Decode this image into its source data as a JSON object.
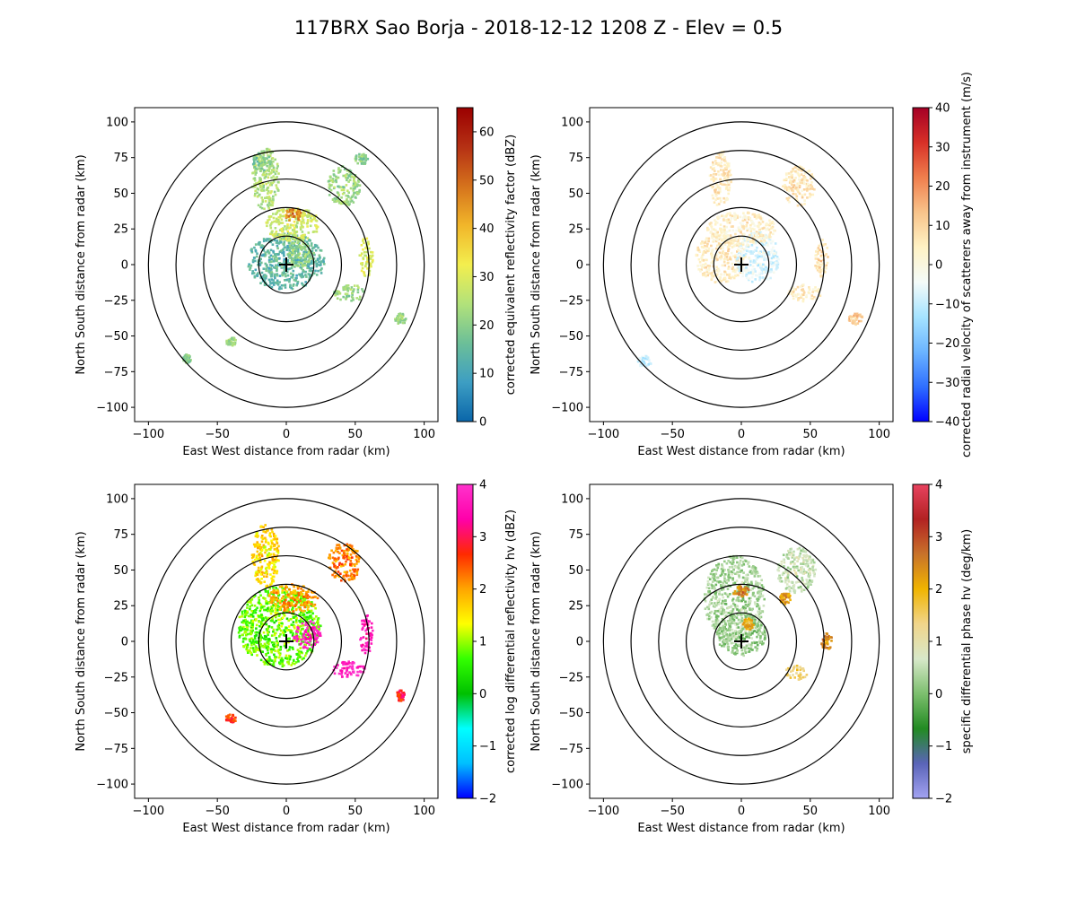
{
  "figure": {
    "title": "117BRX Sao Borja - 2018-12-12 1208 Z -  Elev = 0.5"
  },
  "chart_data": [
    {
      "type": "heatmap",
      "panel": "top-left",
      "xlabel": "East West distance from radar (km)",
      "ylabel": "North South distance from radar (km)",
      "xlim": [
        -110,
        110
      ],
      "ylim": [
        -110,
        110
      ],
      "xticks": [
        -100,
        -50,
        0,
        50,
        100
      ],
      "yticks": [
        -100,
        -75,
        -50,
        -25,
        0,
        25,
        50,
        75,
        100
      ],
      "range_rings_km": [
        20,
        40,
        60,
        80,
        100
      ],
      "colorbar": {
        "label": "corrected equivalent reflectivity factor (dBZ)",
        "min": 0,
        "max": 65,
        "ticks": [
          0,
          10,
          20,
          30,
          40,
          50,
          60
        ],
        "colors": [
          "#0a66aa",
          "#3d9ec3",
          "#6cbf98",
          "#b2e27a",
          "#f3ee4e",
          "#f1b62a",
          "#d5721c",
          "#b53014",
          "#9b0000"
        ]
      },
      "echo_regions": [
        {
          "x": 0,
          "y": 2,
          "rx": 28,
          "ry": 20,
          "value": 14
        },
        {
          "x": 5,
          "y": 28,
          "rx": 20,
          "ry": 12,
          "value": 28
        },
        {
          "x": 5,
          "y": 35,
          "rx": 6,
          "ry": 5,
          "value": 46
        },
        {
          "x": 10,
          "y": 8,
          "rx": 10,
          "ry": 10,
          "value": 22
        },
        {
          "x": -15,
          "y": 60,
          "rx": 10,
          "ry": 22,
          "value": 24
        },
        {
          "x": -18,
          "y": 72,
          "rx": 7,
          "ry": 7,
          "value": 18
        },
        {
          "x": 42,
          "y": 55,
          "rx": 12,
          "ry": 14,
          "value": 22
        },
        {
          "x": 55,
          "y": 74,
          "rx": 5,
          "ry": 4,
          "value": 20
        },
        {
          "x": 58,
          "y": 5,
          "rx": 5,
          "ry": 14,
          "value": 30
        },
        {
          "x": 46,
          "y": -20,
          "rx": 12,
          "ry": 6,
          "value": 22
        },
        {
          "x": 83,
          "y": -38,
          "rx": 4,
          "ry": 4,
          "value": 22
        },
        {
          "x": -40,
          "y": -54,
          "rx": 4,
          "ry": 3,
          "value": 22
        },
        {
          "x": -72,
          "y": -66,
          "rx": 3,
          "ry": 3,
          "value": 20
        }
      ]
    },
    {
      "type": "heatmap",
      "panel": "top-right",
      "xlabel": "East West distance from radar (km)",
      "ylabel": "North South distance from radar (km)",
      "xlim": [
        -110,
        110
      ],
      "ylim": [
        -110,
        110
      ],
      "xticks": [
        -100,
        -50,
        0,
        50,
        100
      ],
      "yticks": [
        -100,
        -75,
        -50,
        -25,
        0,
        25,
        50,
        75,
        100
      ],
      "range_rings_km": [
        20,
        40,
        60,
        80,
        100
      ],
      "colorbar": {
        "label": "corrected radial velocity of scatterers away from instrument (m/s)",
        "min": -40,
        "max": 40,
        "ticks": [
          -40,
          -30,
          -20,
          -10,
          0,
          10,
          20,
          30,
          40
        ],
        "colors": [
          "#0000ff",
          "#2f6fff",
          "#6bb4ff",
          "#a5e3ff",
          "#f4fbf9",
          "#fff2c4",
          "#f8c38a",
          "#f07e4d",
          "#d73027",
          "#a50026"
        ]
      },
      "echo_regions": [
        {
          "x": -15,
          "y": 5,
          "rx": 18,
          "ry": 18,
          "value": 5
        },
        {
          "x": 12,
          "y": 5,
          "rx": 16,
          "ry": 18,
          "value": -7
        },
        {
          "x": 0,
          "y": 25,
          "rx": 25,
          "ry": 12,
          "value": 4
        },
        {
          "x": -15,
          "y": 60,
          "rx": 8,
          "ry": 20,
          "value": 6
        },
        {
          "x": 42,
          "y": 55,
          "rx": 12,
          "ry": 14,
          "value": 6
        },
        {
          "x": 58,
          "y": 5,
          "rx": 5,
          "ry": 14,
          "value": 8
        },
        {
          "x": 46,
          "y": -20,
          "rx": 12,
          "ry": 6,
          "value": 5
        },
        {
          "x": 83,
          "y": -38,
          "rx": 5,
          "ry": 4,
          "value": 12
        },
        {
          "x": -70,
          "y": -68,
          "rx": 5,
          "ry": 4,
          "value": -8
        }
      ]
    },
    {
      "type": "heatmap",
      "panel": "bottom-left",
      "xlabel": "East West distance from radar (km)",
      "ylabel": "North South distance from radar (km)",
      "xlim": [
        -110,
        110
      ],
      "ylim": [
        -110,
        110
      ],
      "xticks": [
        -100,
        -50,
        0,
        50,
        100
      ],
      "yticks": [
        -100,
        -75,
        -50,
        -25,
        0,
        25,
        50,
        75,
        100
      ],
      "range_rings_km": [
        20,
        40,
        60,
        80,
        100
      ],
      "colorbar": {
        "label": "corrected log differential reflectivity hv (dBZ)",
        "min": -2,
        "max": 4,
        "ticks": [
          -2,
          -1,
          0,
          1,
          2,
          3,
          4
        ],
        "colors": [
          "#0000ff",
          "#00bfff",
          "#00ffff",
          "#00c000",
          "#33ff00",
          "#ffff00",
          "#ffa500",
          "#ff2a00",
          "#ff00aa",
          "#ff33cc"
        ]
      },
      "echo_regions": [
        {
          "x": -5,
          "y": 10,
          "rx": 30,
          "ry": 28,
          "value": 0.8
        },
        {
          "x": -15,
          "y": 60,
          "rx": 10,
          "ry": 22,
          "value": 1.6
        },
        {
          "x": 15,
          "y": 5,
          "rx": 10,
          "ry": 10,
          "value": 3.8
        },
        {
          "x": 5,
          "y": 30,
          "rx": 18,
          "ry": 10,
          "value": 2.0
        },
        {
          "x": 42,
          "y": 55,
          "rx": 12,
          "ry": 14,
          "value": 2.2
        },
        {
          "x": 58,
          "y": 5,
          "rx": 5,
          "ry": 14,
          "value": 3.6
        },
        {
          "x": 46,
          "y": -20,
          "rx": 12,
          "ry": 6,
          "value": 3.8
        },
        {
          "x": 83,
          "y": -38,
          "rx": 3,
          "ry": 4,
          "value": 2.8
        },
        {
          "x": -40,
          "y": -54,
          "rx": 4,
          "ry": 3,
          "value": 2.6
        }
      ]
    },
    {
      "type": "heatmap",
      "panel": "bottom-right",
      "xlabel": "East West distance from radar (km)",
      "ylabel": "North South distance from radar (km)",
      "xlim": [
        -110,
        110
      ],
      "ylim": [
        -110,
        110
      ],
      "xticks": [
        -100,
        -50,
        0,
        50,
        100
      ],
      "yticks": [
        -100,
        -75,
        -50,
        -25,
        0,
        25,
        50,
        75,
        100
      ],
      "range_rings_km": [
        20,
        40,
        60,
        80,
        100
      ],
      "colorbar": {
        "label": "specific differential phase hv (deg/km)",
        "min": -2,
        "max": 4,
        "ticks": [
          -2,
          -1,
          0,
          1,
          2,
          3,
          4
        ],
        "colors": [
          "#a3a3f2",
          "#5a64b8",
          "#228b22",
          "#7cbf6e",
          "#d7e8c9",
          "#f1d58a",
          "#f0b400",
          "#c8722a",
          "#b22222",
          "#e8425f"
        ]
      },
      "echo_regions": [
        {
          "x": -5,
          "y": 30,
          "rx": 22,
          "ry": 30,
          "value": 0.3
        },
        {
          "x": 0,
          "y": 5,
          "rx": 18,
          "ry": 15,
          "value": 0.2
        },
        {
          "x": 40,
          "y": 50,
          "rx": 14,
          "ry": 16,
          "value": 0.5
        },
        {
          "x": 0,
          "y": 35,
          "rx": 6,
          "ry": 4,
          "value": 2.5
        },
        {
          "x": 5,
          "y": 12,
          "rx": 4,
          "ry": 4,
          "value": 2.0
        },
        {
          "x": 32,
          "y": 30,
          "rx": 4,
          "ry": 4,
          "value": 2.2
        },
        {
          "x": 62,
          "y": 0,
          "rx": 4,
          "ry": 6,
          "value": 2.4
        },
        {
          "x": 40,
          "y": -22,
          "rx": 8,
          "ry": 5,
          "value": 1.5
        }
      ]
    }
  ]
}
